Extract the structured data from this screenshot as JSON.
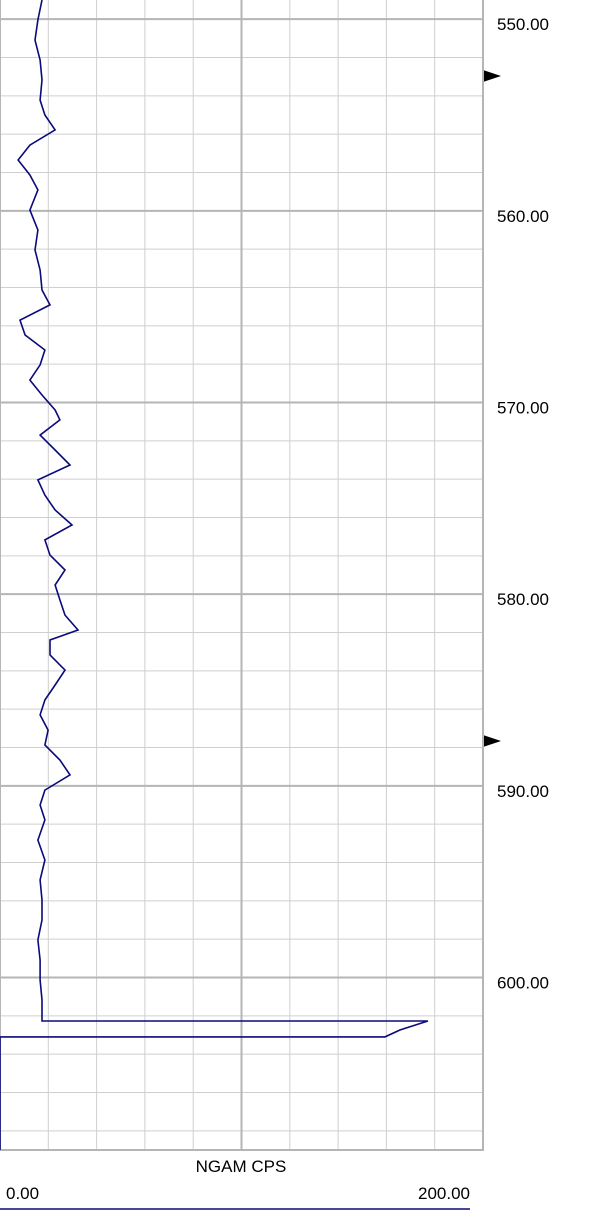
{
  "chart_data": {
    "type": "line",
    "x_label": "NGAM  CPS",
    "color": "#0a0a7a",
    "xlim": [
      0,
      200
    ],
    "xticks": [
      {
        "value": 0,
        "label": "0.00"
      },
      20,
      40,
      60,
      80,
      100,
      120,
      140,
      160,
      180,
      {
        "value": 200,
        "label": "200.00"
      }
    ],
    "ylim": [
      549,
      609
    ],
    "yticks": [
      {
        "value": 550,
        "label": "550.00"
      },
      {
        "value": 560,
        "label": "560.00"
      },
      {
        "value": 570,
        "label": "570.00"
      },
      {
        "value": 580,
        "label": "580.00"
      },
      {
        "value": 590,
        "label": "590.00"
      },
      {
        "value": 600,
        "label": "600.00"
      }
    ],
    "yticks_minor": [
      552,
      554,
      556,
      558,
      562,
      564,
      566,
      568,
      572,
      574,
      576,
      578,
      582,
      584,
      586,
      588,
      592,
      594,
      596,
      598,
      602,
      604,
      606,
      608
    ],
    "grid": true,
    "depth": [
      549.0,
      550.04,
      551.09,
      552.13,
      553.17,
      554.22,
      555.0,
      555.78,
      556.57,
      557.35,
      558.13,
      558.91,
      559.96,
      561.0,
      562.04,
      563.09,
      564.13,
      564.91,
      565.7,
      566.48,
      567.26,
      568.04,
      568.83,
      569.61,
      570.39,
      570.91,
      571.7,
      572.48,
      573.26,
      574.04,
      574.83,
      575.61,
      576.39,
      577.17,
      577.96,
      578.74,
      579.52,
      580.3,
      581.09,
      581.87,
      582.39,
      583.17,
      583.96,
      584.74,
      585.52,
      586.3,
      587.09,
      587.87,
      588.65,
      589.43,
      590.22,
      591.0,
      591.78,
      592.83,
      593.87,
      594.91,
      595.96,
      597.0,
      598.04,
      599.09,
      600.13,
      601.17,
      602.22,
      602.27,
      602.27,
      602.74,
      603.1,
      603.1,
      609.0
    ],
    "values": [
      17.4,
      15.7,
      14.5,
      16.6,
      17.4,
      16.6,
      18.6,
      22.8,
      12.4,
      7.5,
      12.4,
      15.7,
      12.4,
      15.7,
      14.5,
      16.6,
      17.4,
      20.7,
      8.3,
      10.4,
      18.6,
      16.6,
      12.4,
      17.4,
      22.8,
      24.8,
      16.6,
      22.8,
      29.0,
      15.7,
      18.6,
      22.8,
      29.8,
      18.6,
      20.7,
      26.9,
      22.8,
      24.8,
      26.9,
      32.3,
      20.7,
      20.7,
      26.9,
      22.8,
      18.6,
      16.6,
      19.9,
      18.6,
      24.8,
      29.0,
      18.6,
      16.6,
      18.6,
      15.7,
      18.6,
      16.6,
      17.4,
      17.4,
      15.7,
      16.6,
      16.6,
      17.4,
      17.4,
      17.4,
      177.2,
      165.6,
      159.4,
      0,
      0
    ]
  }
}
